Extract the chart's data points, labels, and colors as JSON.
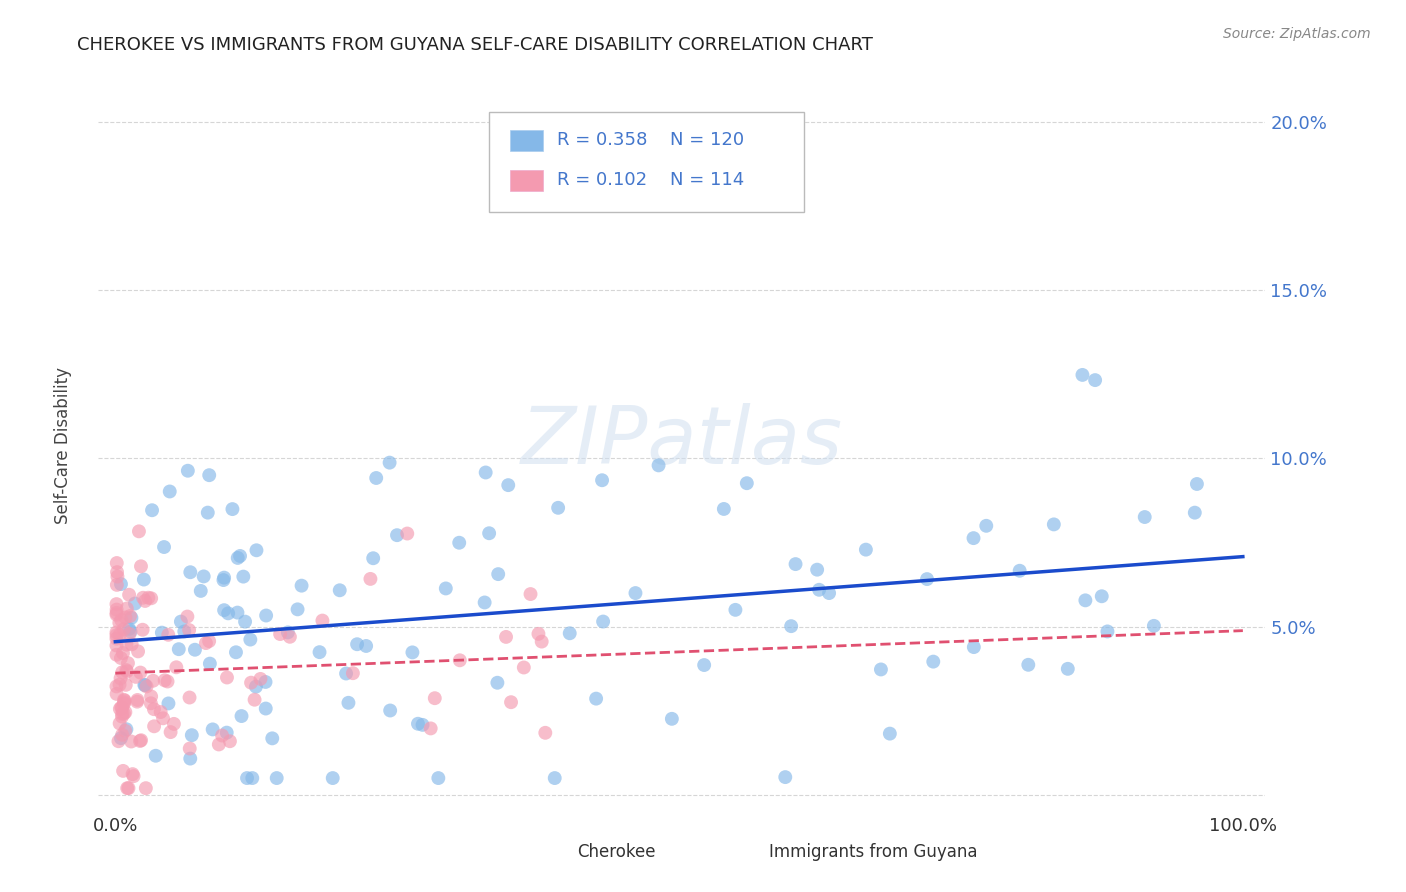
{
  "title": "CHEROKEE VS IMMIGRANTS FROM GUYANA SELF-CARE DISABILITY CORRELATION CHART",
  "source": "Source: ZipAtlas.com",
  "ylabel": "Self-Care Disability",
  "color_cherokee": "#85b8e8",
  "color_guyana": "#f49ab0",
  "color_cherokee_line": "#1a4bcc",
  "color_guyana_line": "#e05070",
  "background_color": "#ffffff",
  "grid_color": "#cccccc",
  "watermark": "ZIPatlas",
  "legend_r1_val": "0.358",
  "legend_n1_val": "120",
  "legend_r2_val": "0.102",
  "legend_n2_val": "114",
  "ytick_color": "#4477cc",
  "title_color": "#222222",
  "source_color": "#888888"
}
